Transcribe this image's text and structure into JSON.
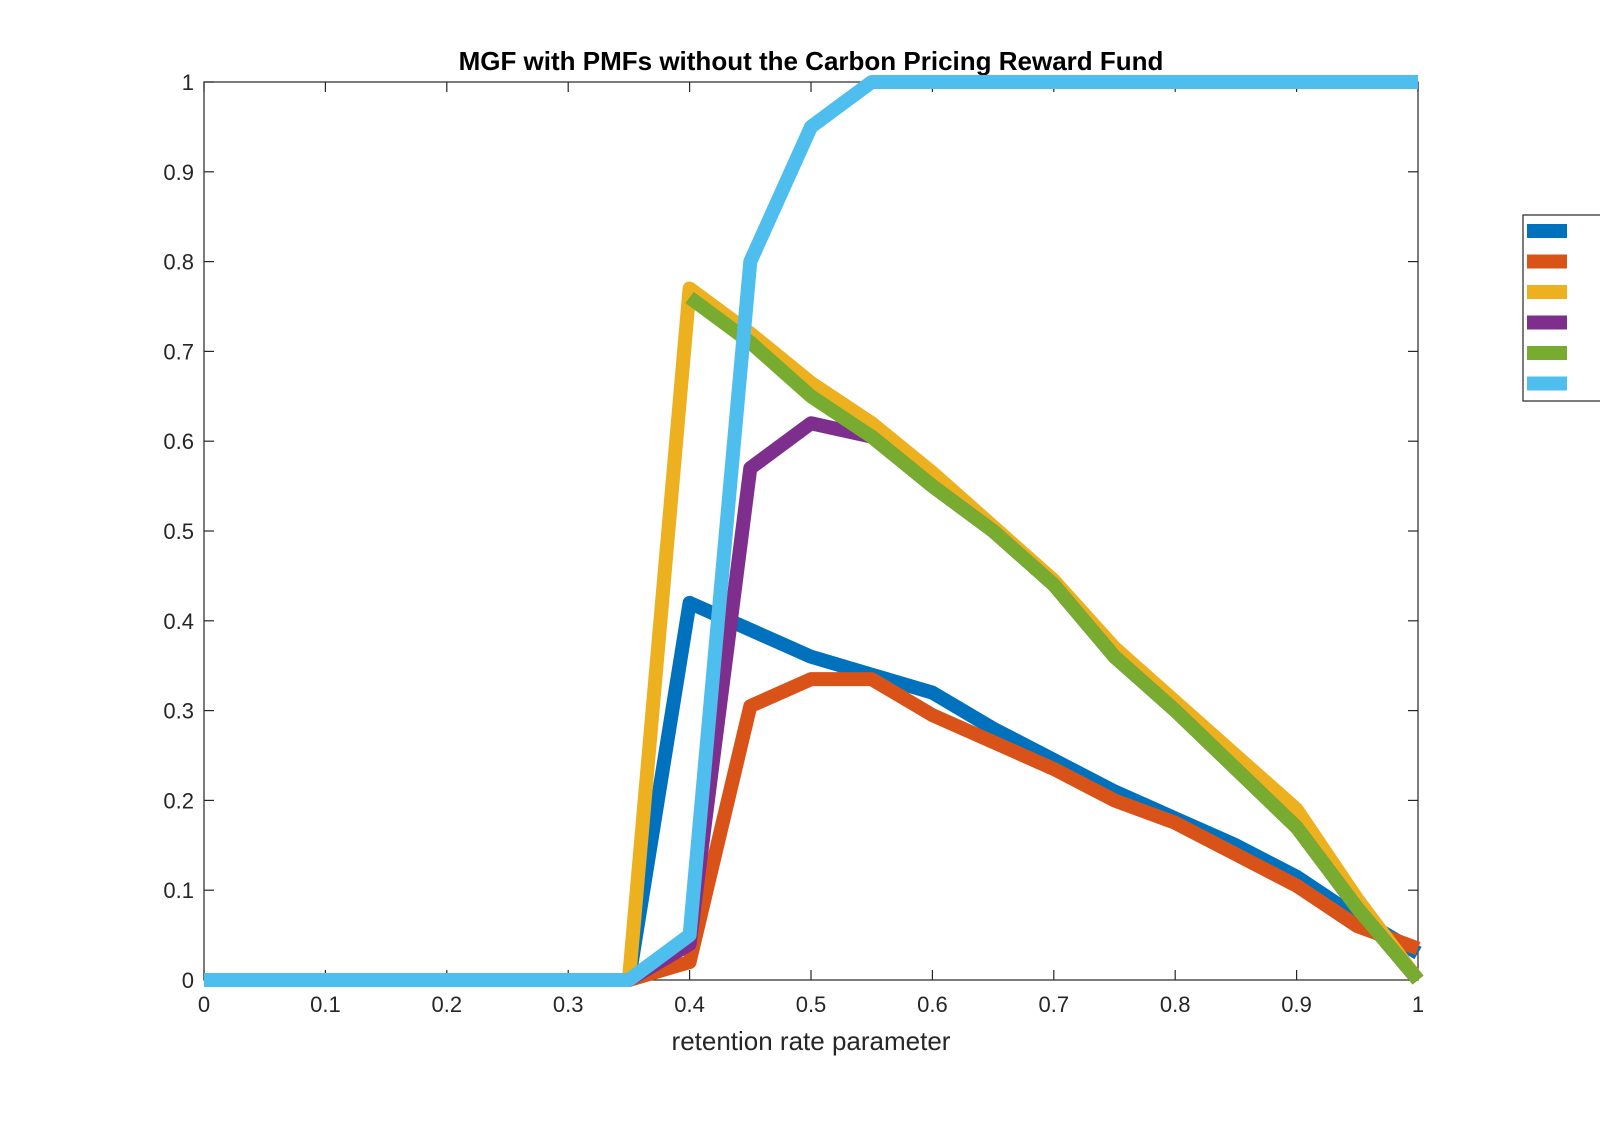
{
  "chart_data": {
    "type": "line",
    "title": "MGF with PMFs without the Carbon Pricing Reward Fund",
    "xlabel": "retention rate parameter",
    "ylabel": "",
    "xlim": [
      0,
      1
    ],
    "ylim": [
      0,
      1
    ],
    "xticks": [
      0,
      0.1,
      0.2,
      0.3,
      0.4,
      0.5,
      0.6,
      0.7,
      0.8,
      0.9,
      1
    ],
    "yticks": [
      0,
      0.1,
      0.2,
      0.3,
      0.4,
      0.5,
      0.6,
      0.7,
      0.8,
      0.9,
      1
    ],
    "xtick_labels": [
      "0",
      "0.1",
      "0.2",
      "0.3",
      "0.4",
      "0.5",
      "0.6",
      "0.7",
      "0.8",
      "0.9",
      "1"
    ],
    "ytick_labels": [
      "0",
      "0.1",
      "0.2",
      "0.3",
      "0.4",
      "0.5",
      "0.6",
      "0.7",
      "0.8",
      "0.9",
      "1"
    ],
    "grid": false,
    "legend_position": "right-outside",
    "x": [
      0,
      0.05,
      0.1,
      0.15,
      0.2,
      0.25,
      0.3,
      0.35,
      0.4,
      0.45,
      0.5,
      0.55,
      0.6,
      0.65,
      0.7,
      0.75,
      0.8,
      0.85,
      0.9,
      0.95,
      1
    ],
    "series": [
      {
        "color": "#0072BD",
        "values": [
          0,
          0,
          0,
          0,
          0,
          0,
          0,
          0,
          0.42,
          0.39,
          0.36,
          0.34,
          0.32,
          0.28,
          0.245,
          0.21,
          0.18,
          0.15,
          0.115,
          0.07,
          0.03
        ]
      },
      {
        "color": "#D95319",
        "values": [
          0,
          0,
          0,
          0,
          0,
          0,
          0,
          0,
          0.02,
          0.305,
          0.335,
          0.335,
          0.295,
          0.265,
          0.235,
          0.2,
          0.175,
          0.14,
          0.105,
          0.06,
          0.035
        ]
      },
      {
        "color": "#EDB120",
        "values": [
          0,
          0,
          0,
          0,
          0,
          0,
          0,
          0,
          0.77,
          0.72,
          0.665,
          0.62,
          0.565,
          0.505,
          0.445,
          0.37,
          0.31,
          0.25,
          0.19,
          0.09,
          0
        ]
      },
      {
        "color": "#7E2F8E",
        "values": [
          0,
          0,
          0,
          0,
          0,
          0,
          0,
          0,
          0.04,
          0.57,
          0.62,
          0.605,
          0.55,
          0.5,
          0.44,
          0.36,
          0.3,
          0.235,
          0.17,
          0.08,
          0
        ]
      },
      {
        "color": "#77AC30",
        "values": [
          null,
          null,
          null,
          null,
          null,
          null,
          null,
          null,
          0.76,
          0.71,
          0.65,
          0.605,
          0.55,
          0.5,
          0.44,
          0.36,
          0.3,
          0.235,
          0.17,
          0.08,
          0
        ]
      },
      {
        "color": "#4DBEEE",
        "values": [
          0,
          0,
          0,
          0,
          0,
          0,
          0,
          0,
          0.05,
          0.8,
          0.95,
          1,
          1,
          1,
          1,
          1,
          1,
          1,
          1,
          1,
          1
        ]
      }
    ]
  }
}
